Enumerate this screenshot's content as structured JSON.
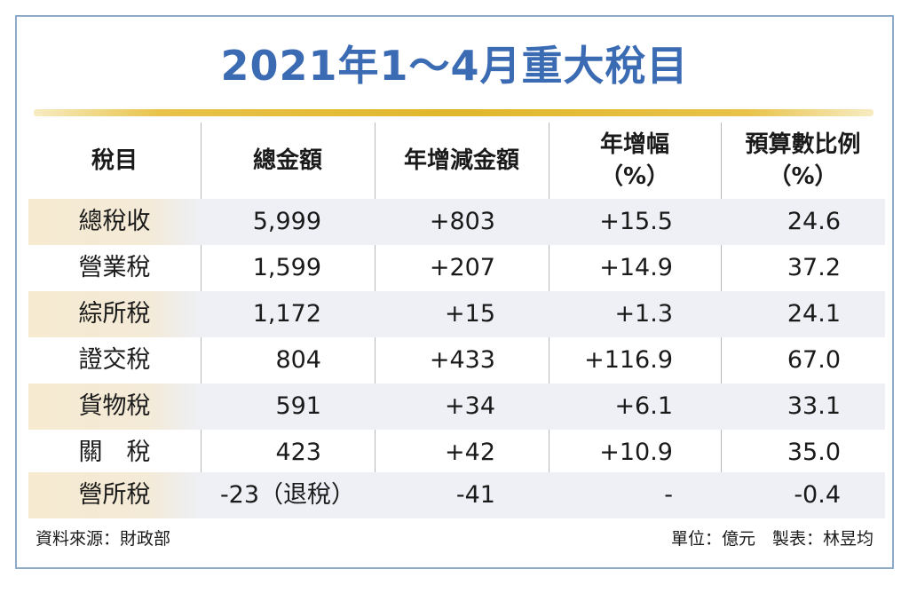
{
  "title": "2021年1～4月重大稅目",
  "headers": {
    "col0": "稅目",
    "col1": "總金額",
    "col2": "年增減金額",
    "col3_line1": "年增幅",
    "col3_line2": "（%）",
    "col4_line1": "預算數比例",
    "col4_line2": "（%）"
  },
  "rows": [
    {
      "name": "總稅收",
      "total": "5,999",
      "change": "+803",
      "growth": "+15.5",
      "budget_ratio": "24.6"
    },
    {
      "name": "營業稅",
      "total": "1,599",
      "change": "+207",
      "growth": "+14.9",
      "budget_ratio": "37.2"
    },
    {
      "name": "綜所稅",
      "total": "1,172",
      "change": "+15",
      "growth": "+1.3",
      "budget_ratio": "24.1"
    },
    {
      "name": "證交稅",
      "total": "804",
      "change": "+433",
      "growth": "+116.9",
      "budget_ratio": "67.0"
    },
    {
      "name": "貨物稅",
      "total": "591",
      "change": "+34",
      "growth": "+6.1",
      "budget_ratio": "33.1"
    },
    {
      "name": "關　稅",
      "total": "423",
      "change": "+42",
      "growth": "+10.9",
      "budget_ratio": "35.0"
    },
    {
      "name": "營所稅",
      "total": "-23（退稅）",
      "change": "-41",
      "growth": "-",
      "budget_ratio": "-0.4"
    }
  ],
  "footer": {
    "source": "資料來源：財政部",
    "unit_and_author": "單位：億元　製表：林昱均"
  },
  "colors": {
    "title": "#3a6bb3",
    "rule": "#e0b62a",
    "border": "#8fa9c8",
    "row_shade": "#eef0f5"
  }
}
